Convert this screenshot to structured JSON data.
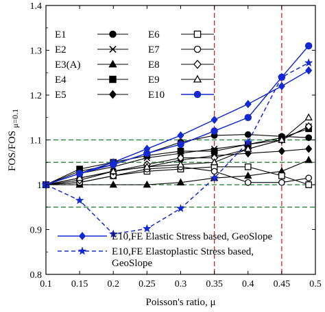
{
  "chart_data": {
    "type": "line",
    "title": "",
    "xlabel": "Poisson's ratio, μ",
    "ylabel": "FOS/FOS",
    "ylabel_sub": "μ=0.1",
    "xlim": [
      0.1,
      0.5
    ],
    "ylim": [
      0.8,
      1.4
    ],
    "x_ticks": [
      "0.1",
      "0.15",
      "0.2",
      "0.25",
      "0.3",
      "0.35",
      "0.4",
      "0.45",
      "0.5"
    ],
    "y_ticks": [
      "0.8",
      "0.9",
      "1",
      "1.1",
      "1.2",
      "1.3",
      "1.4"
    ],
    "grid": false,
    "reference_lines": {
      "horizontal_green_dashed": [
        0.95,
        1.0,
        1.05,
        1.1
      ],
      "vertical_red_dashed": [
        0.35,
        0.45
      ]
    },
    "x": [
      0.1,
      0.15,
      0.2,
      0.25,
      0.3,
      0.35,
      0.4,
      0.45,
      0.49
    ],
    "series": [
      {
        "name": "E1",
        "marker": "circle-filled",
        "color": "#000000",
        "values": [
          1.0,
          1.03,
          1.045,
          1.07,
          1.095,
          1.11,
          1.112,
          1.108,
          1.105
        ]
      },
      {
        "name": "E2",
        "marker": "x",
        "color": "#000000",
        "values": [
          1.0,
          1.025,
          1.04,
          1.06,
          1.07,
          1.08,
          1.09,
          1.1,
          1.13
        ]
      },
      {
        "name": "E3(A)",
        "marker": "triangle-filled",
        "color": "#000000",
        "values": [
          1.0,
          1.0,
          1.0,
          1.0,
          1.005,
          1.015,
          1.02,
          1.03,
          1.055
        ]
      },
      {
        "name": "E4",
        "marker": "square-filled",
        "color": "#000000",
        "values": [
          1.0,
          1.035,
          1.05,
          1.065,
          1.075,
          1.075,
          1.09,
          1.105,
          1.125
        ]
      },
      {
        "name": "E5",
        "marker": "diamond-filled",
        "color": "#000000",
        "values": [
          1.0,
          1.015,
          1.03,
          1.04,
          1.055,
          1.065,
          1.07,
          1.075,
          1.08
        ]
      },
      {
        "name": "E6",
        "marker": "square-open",
        "color": "#000000",
        "values": [
          1.0,
          1.005,
          1.02,
          1.03,
          1.035,
          1.04,
          1.04,
          1.02,
          1.0
        ]
      },
      {
        "name": "E7",
        "marker": "circle-open",
        "color": "#000000",
        "values": [
          1.0,
          1.005,
          1.02,
          1.035,
          1.04,
          1.03,
          1.005,
          1.005,
          1.015
        ]
      },
      {
        "name": "E8",
        "marker": "diamond-open",
        "color": "#000000",
        "values": [
          1.0,
          1.01,
          1.03,
          1.045,
          1.06,
          1.06,
          1.08,
          1.1,
          1.13
        ]
      },
      {
        "name": "E9",
        "marker": "triangle-open",
        "color": "#000000",
        "values": [
          1.0,
          1.015,
          1.03,
          1.04,
          1.045,
          1.05,
          1.08,
          1.1,
          1.15
        ]
      },
      {
        "name": "E10",
        "marker": "circle-filled",
        "color": "#1428d2",
        "values": [
          1.0,
          1.025,
          1.045,
          1.07,
          1.09,
          1.12,
          1.15,
          1.24,
          1.31
        ]
      },
      {
        "name": "E10,FE Elastic Stress based, GeoSlope",
        "marker": "diamond-filled",
        "color": "#1428d2",
        "dashed": false,
        "values": [
          1.0,
          1.025,
          1.05,
          1.08,
          1.11,
          1.145,
          1.18,
          1.22,
          1.255
        ]
      },
      {
        "name": "E10,FE Elastoplastic Stress based, GeoSlope",
        "marker": "star-filled",
        "color": "#1428d2",
        "dashed": true,
        "values": [
          1.0,
          0.965,
          0.89,
          0.902,
          0.947,
          1.015,
          1.095,
          1.24,
          1.272
        ]
      }
    ],
    "legend_black_columns": [
      [
        "E1",
        "E2",
        "E3(A)",
        "E4",
        "E5"
      ],
      [
        "E6",
        "E7",
        "E8",
        "E9",
        "E10"
      ]
    ],
    "legend_bottom": [
      {
        "line1": "E10,FE Elastic Stress based, GeoSlope",
        "line2": ""
      },
      {
        "line1": "E10,FE Elastoplastic Stress based,",
        "line2": "GeoSlope"
      }
    ]
  }
}
